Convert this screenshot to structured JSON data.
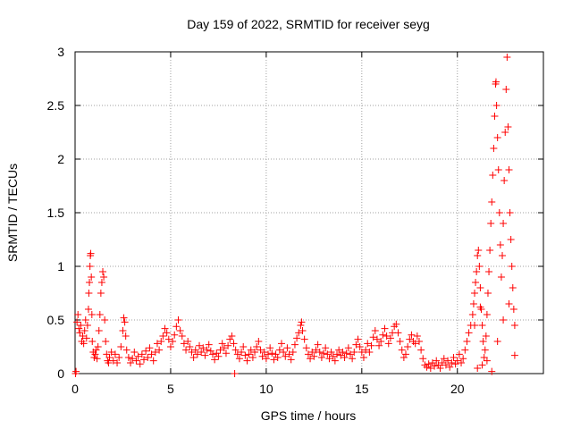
{
  "chart_data": {
    "type": "scatter",
    "title": "Day 159 of 2022, SRMTID for receiver seyg",
    "xlabel": "GPS time / hours",
    "ylabel": "SRMTID / TECUs",
    "xlim": [
      0,
      24.5
    ],
    "ylim": [
      0,
      3
    ],
    "xticks": [
      0,
      5,
      10,
      15,
      20
    ],
    "xtick_labels": [
      "0",
      "5",
      "10",
      "15",
      "20"
    ],
    "yticks": [
      0,
      0.5,
      1,
      1.5,
      2,
      2.5,
      3
    ],
    "ytick_labels": [
      "0",
      "0.5",
      "1",
      "1.5",
      "2",
      "2.5",
      "3"
    ],
    "grid": true,
    "marker": "+",
    "series": [
      {
        "name": "SRMTID",
        "color": "#ff0000",
        "points": [
          [
            0.02,
            0.0
          ],
          [
            0.05,
            0.02
          ],
          [
            0.1,
            0.48
          ],
          [
            0.15,
            0.55
          ],
          [
            0.2,
            0.42
          ],
          [
            0.25,
            0.38
          ],
          [
            0.3,
            0.45
          ],
          [
            0.35,
            0.3
          ],
          [
            0.4,
            0.35
          ],
          [
            0.45,
            0.28
          ],
          [
            0.5,
            0.4
          ],
          [
            0.55,
            0.5
          ],
          [
            0.6,
            0.33
          ],
          [
            0.65,
            0.45
          ],
          [
            0.7,
            0.6
          ],
          [
            0.72,
            0.75
          ],
          [
            0.75,
            0.85
          ],
          [
            0.78,
            1.0
          ],
          [
            0.8,
            1.1
          ],
          [
            0.82,
            1.12
          ],
          [
            0.85,
            0.9
          ],
          [
            0.88,
            0.55
          ],
          [
            0.9,
            0.3
          ],
          [
            0.95,
            0.2
          ],
          [
            1.0,
            0.15
          ],
          [
            1.05,
            0.18
          ],
          [
            1.1,
            0.22
          ],
          [
            1.15,
            0.14
          ],
          [
            1.2,
            0.25
          ],
          [
            1.25,
            0.4
          ],
          [
            1.3,
            0.55
          ],
          [
            1.35,
            0.75
          ],
          [
            1.4,
            0.85
          ],
          [
            1.45,
            0.95
          ],
          [
            1.5,
            0.9
          ],
          [
            1.55,
            0.5
          ],
          [
            1.6,
            0.3
          ],
          [
            1.65,
            0.18
          ],
          [
            1.7,
            0.12
          ],
          [
            1.75,
            0.1
          ],
          [
            1.8,
            0.15
          ],
          [
            1.9,
            0.2
          ],
          [
            2.0,
            0.12
          ],
          [
            2.1,
            0.18
          ],
          [
            2.2,
            0.1
          ],
          [
            2.3,
            0.15
          ],
          [
            2.4,
            0.25
          ],
          [
            2.5,
            0.4
          ],
          [
            2.55,
            0.52
          ],
          [
            2.6,
            0.48
          ],
          [
            2.65,
            0.35
          ],
          [
            2.7,
            0.22
          ],
          [
            2.8,
            0.15
          ],
          [
            2.9,
            0.1
          ],
          [
            3.0,
            0.14
          ],
          [
            3.1,
            0.2
          ],
          [
            3.2,
            0.12
          ],
          [
            3.3,
            0.16
          ],
          [
            3.4,
            0.09
          ],
          [
            3.5,
            0.18
          ],
          [
            3.6,
            0.13
          ],
          [
            3.7,
            0.21
          ],
          [
            3.8,
            0.15
          ],
          [
            3.9,
            0.24
          ],
          [
            4.0,
            0.18
          ],
          [
            4.1,
            0.12
          ],
          [
            4.2,
            0.2
          ],
          [
            4.3,
            0.28
          ],
          [
            4.4,
            0.22
          ],
          [
            4.5,
            0.3
          ],
          [
            4.6,
            0.35
          ],
          [
            4.7,
            0.42
          ],
          [
            4.8,
            0.38
          ],
          [
            4.9,
            0.32
          ],
          [
            5.0,
            0.25
          ],
          [
            5.1,
            0.3
          ],
          [
            5.2,
            0.36
          ],
          [
            5.3,
            0.44
          ],
          [
            5.4,
            0.5
          ],
          [
            5.5,
            0.4
          ],
          [
            5.6,
            0.35
          ],
          [
            5.7,
            0.28
          ],
          [
            5.8,
            0.22
          ],
          [
            5.9,
            0.3
          ],
          [
            6.0,
            0.25
          ],
          [
            6.1,
            0.2
          ],
          [
            6.2,
            0.15
          ],
          [
            6.3,
            0.22
          ],
          [
            6.4,
            0.18
          ],
          [
            6.5,
            0.26
          ],
          [
            6.6,
            0.2
          ],
          [
            6.7,
            0.24
          ],
          [
            6.8,
            0.17
          ],
          [
            6.9,
            0.22
          ],
          [
            7.0,
            0.27
          ],
          [
            7.1,
            0.21
          ],
          [
            7.2,
            0.18
          ],
          [
            7.3,
            0.13
          ],
          [
            7.4,
            0.19
          ],
          [
            7.5,
            0.16
          ],
          [
            7.6,
            0.22
          ],
          [
            7.7,
            0.28
          ],
          [
            7.8,
            0.24
          ],
          [
            7.9,
            0.19
          ],
          [
            8.0,
            0.26
          ],
          [
            8.1,
            0.32
          ],
          [
            8.2,
            0.35
          ],
          [
            8.3,
            0.28
          ],
          [
            8.35,
            0.0
          ],
          [
            8.4,
            0.22
          ],
          [
            8.5,
            0.18
          ],
          [
            8.6,
            0.14
          ],
          [
            8.7,
            0.2
          ],
          [
            8.8,
            0.25
          ],
          [
            8.9,
            0.17
          ],
          [
            9.0,
            0.12
          ],
          [
            9.1,
            0.18
          ],
          [
            9.2,
            0.22
          ],
          [
            9.3,
            0.15
          ],
          [
            9.4,
            0.2
          ],
          [
            9.5,
            0.25
          ],
          [
            9.6,
            0.3
          ],
          [
            9.7,
            0.22
          ],
          [
            9.8,
            0.16
          ],
          [
            9.9,
            0.2
          ],
          [
            10.0,
            0.14
          ],
          [
            10.1,
            0.18
          ],
          [
            10.2,
            0.24
          ],
          [
            10.3,
            0.19
          ],
          [
            10.4,
            0.13
          ],
          [
            10.5,
            0.18
          ],
          [
            10.6,
            0.15
          ],
          [
            10.7,
            0.22
          ],
          [
            10.8,
            0.28
          ],
          [
            10.9,
            0.2
          ],
          [
            11.0,
            0.16
          ],
          [
            11.1,
            0.24
          ],
          [
            11.2,
            0.18
          ],
          [
            11.3,
            0.13
          ],
          [
            11.4,
            0.2
          ],
          [
            11.5,
            0.27
          ],
          [
            11.6,
            0.33
          ],
          [
            11.7,
            0.38
          ],
          [
            11.8,
            0.45
          ],
          [
            11.85,
            0.48
          ],
          [
            11.9,
            0.4
          ],
          [
            12.0,
            0.32
          ],
          [
            12.1,
            0.24
          ],
          [
            12.2,
            0.18
          ],
          [
            12.3,
            0.14
          ],
          [
            12.4,
            0.2
          ],
          [
            12.5,
            0.16
          ],
          [
            12.6,
            0.22
          ],
          [
            12.7,
            0.27
          ],
          [
            12.8,
            0.2
          ],
          [
            12.9,
            0.15
          ],
          [
            13.0,
            0.19
          ],
          [
            13.1,
            0.24
          ],
          [
            13.2,
            0.18
          ],
          [
            13.3,
            0.14
          ],
          [
            13.4,
            0.2
          ],
          [
            13.5,
            0.16
          ],
          [
            13.6,
            0.12
          ],
          [
            13.7,
            0.18
          ],
          [
            13.8,
            0.22
          ],
          [
            13.9,
            0.17
          ],
          [
            14.0,
            0.2
          ],
          [
            14.1,
            0.15
          ],
          [
            14.2,
            0.19
          ],
          [
            14.3,
            0.24
          ],
          [
            14.4,
            0.18
          ],
          [
            14.5,
            0.14
          ],
          [
            14.6,
            0.2
          ],
          [
            14.7,
            0.27
          ],
          [
            14.8,
            0.32
          ],
          [
            14.9,
            0.25
          ],
          [
            15.0,
            0.2
          ],
          [
            15.1,
            0.15
          ],
          [
            15.2,
            0.22
          ],
          [
            15.3,
            0.28
          ],
          [
            15.4,
            0.2
          ],
          [
            15.5,
            0.26
          ],
          [
            15.6,
            0.34
          ],
          [
            15.7,
            0.4
          ],
          [
            15.8,
            0.32
          ],
          [
            15.9,
            0.26
          ],
          [
            16.0,
            0.3
          ],
          [
            16.1,
            0.36
          ],
          [
            16.2,
            0.42
          ],
          [
            16.3,
            0.35
          ],
          [
            16.4,
            0.28
          ],
          [
            16.5,
            0.33
          ],
          [
            16.6,
            0.38
          ],
          [
            16.7,
            0.44
          ],
          [
            16.8,
            0.46
          ],
          [
            16.9,
            0.38
          ],
          [
            17.0,
            0.3
          ],
          [
            17.1,
            0.22
          ],
          [
            17.2,
            0.15
          ],
          [
            17.3,
            0.18
          ],
          [
            17.4,
            0.25
          ],
          [
            17.5,
            0.32
          ],
          [
            17.6,
            0.36
          ],
          [
            17.7,
            0.3
          ],
          [
            17.8,
            0.28
          ],
          [
            17.9,
            0.35
          ],
          [
            18.0,
            0.3
          ],
          [
            18.1,
            0.22
          ],
          [
            18.2,
            0.14
          ],
          [
            18.3,
            0.08
          ],
          [
            18.4,
            0.06
          ],
          [
            18.5,
            0.09
          ],
          [
            18.6,
            0.05
          ],
          [
            18.7,
            0.1
          ],
          [
            18.8,
            0.07
          ],
          [
            18.9,
            0.12
          ],
          [
            19.0,
            0.08
          ],
          [
            19.1,
            0.05
          ],
          [
            19.2,
            0.1
          ],
          [
            19.3,
            0.14
          ],
          [
            19.4,
            0.08
          ],
          [
            19.5,
            0.12
          ],
          [
            19.6,
            0.06
          ],
          [
            19.7,
            0.1
          ],
          [
            19.8,
            0.15
          ],
          [
            19.9,
            0.09
          ],
          [
            20.0,
            0.12
          ],
          [
            20.1,
            0.18
          ],
          [
            20.2,
            0.1
          ],
          [
            20.3,
            0.14
          ],
          [
            20.4,
            0.22
          ],
          [
            20.5,
            0.3
          ],
          [
            20.6,
            0.38
          ],
          [
            20.7,
            0.45
          ],
          [
            20.8,
            0.55
          ],
          [
            20.85,
            0.65
          ],
          [
            20.9,
            0.75
          ],
          [
            20.95,
            0.85
          ],
          [
            21.0,
            0.95
          ],
          [
            21.05,
            1.1
          ],
          [
            21.1,
            1.15
          ],
          [
            21.15,
            1.0
          ],
          [
            21.2,
            0.8
          ],
          [
            21.25,
            0.6
          ],
          [
            21.3,
            0.45
          ],
          [
            21.35,
            0.3
          ],
          [
            21.4,
            0.15
          ],
          [
            21.45,
            0.22
          ],
          [
            21.5,
            0.35
          ],
          [
            21.55,
            0.55
          ],
          [
            21.6,
            0.75
          ],
          [
            21.65,
            0.95
          ],
          [
            21.7,
            1.15
          ],
          [
            21.75,
            1.4
          ],
          [
            21.8,
            1.6
          ],
          [
            21.85,
            1.85
          ],
          [
            21.9,
            2.1
          ],
          [
            21.95,
            2.4
          ],
          [
            22.0,
            2.7
          ],
          [
            22.02,
            2.72
          ],
          [
            22.05,
            2.5
          ],
          [
            22.1,
            2.2
          ],
          [
            22.15,
            1.9
          ],
          [
            22.2,
            1.5
          ],
          [
            22.25,
            1.2
          ],
          [
            22.3,
            0.9
          ],
          [
            22.35,
            1.1
          ],
          [
            22.4,
            1.4
          ],
          [
            22.45,
            1.8
          ],
          [
            22.5,
            2.25
          ],
          [
            22.55,
            2.65
          ],
          [
            22.6,
            2.95
          ],
          [
            22.65,
            2.3
          ],
          [
            22.7,
            1.9
          ],
          [
            22.75,
            1.5
          ],
          [
            22.8,
            1.25
          ],
          [
            22.85,
            1.0
          ],
          [
            22.9,
            0.8
          ],
          [
            22.95,
            0.6
          ],
          [
            23.0,
            0.45
          ],
          [
            21.05,
            0.05
          ],
          [
            21.3,
            0.08
          ],
          [
            21.55,
            0.12
          ],
          [
            21.8,
            0.02
          ],
          [
            22.1,
            0.3
          ],
          [
            22.4,
            0.5
          ],
          [
            22.7,
            0.65
          ],
          [
            23.0,
            0.17
          ],
          [
            20.9,
            0.45
          ],
          [
            21.2,
            0.62
          ]
        ]
      }
    ]
  }
}
